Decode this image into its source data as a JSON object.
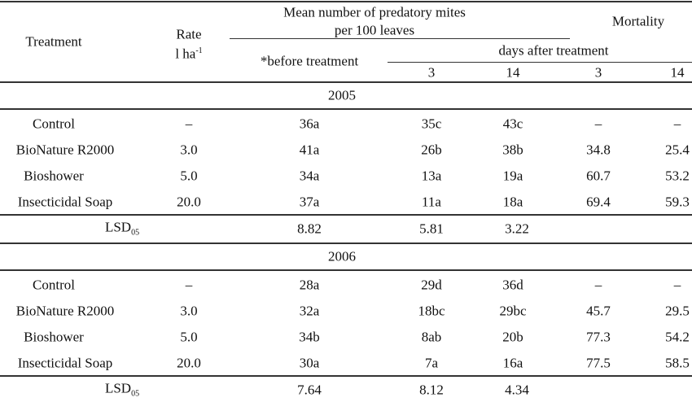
{
  "header": {
    "treatment": "Treatment",
    "rate": "Rate",
    "rate_unit": "l ha",
    "rate_unit_sup": "-1",
    "mean_title_line1": "Mean number of predatory mites",
    "mean_title_line2": "per 100 leaves",
    "mortality": "Mortality",
    "before": "*before treatment",
    "days_after": "days after treatment",
    "day_cols": [
      "3",
      "14",
      "3",
      "14"
    ]
  },
  "groups": [
    {
      "year": "2005",
      "rows": [
        [
          "Control",
          "–",
          "36a",
          "35c",
          "43c",
          "–",
          "–"
        ],
        [
          "BioNature R2000",
          "3.0",
          "41a",
          "26b",
          "38b",
          "34.8",
          "25.4"
        ],
        [
          "Bioshower",
          "5.0",
          "34a",
          "13a",
          "19a",
          "60.7",
          "53.2"
        ],
        [
          "Insecticidal Soap",
          "20.0",
          "37a",
          "11a",
          "18a",
          "69.4",
          "59.3"
        ]
      ],
      "lsd_label": "LSD",
      "lsd_sub": "05",
      "lsd": [
        "8.82",
        "5.81",
        "3.22"
      ]
    },
    {
      "year": "2006",
      "rows": [
        [
          "Control",
          "–",
          "28a",
          "29d",
          "36d",
          "–",
          "–"
        ],
        [
          "BioNature R2000",
          "3.0",
          "32a",
          "18bc",
          "29bc",
          "45.7",
          "29.5"
        ],
        [
          "Bioshower",
          "5.0",
          "34b",
          "8ab",
          "20b",
          "77.3",
          "54.2"
        ],
        [
          "Insecticidal Soap",
          "20.0",
          "30a",
          "7a",
          "16a",
          "77.5",
          "58.5"
        ]
      ],
      "lsd_label": "LSD",
      "lsd_sub": "05",
      "lsd": [
        "7.64",
        "8.12",
        "4.34"
      ]
    }
  ]
}
